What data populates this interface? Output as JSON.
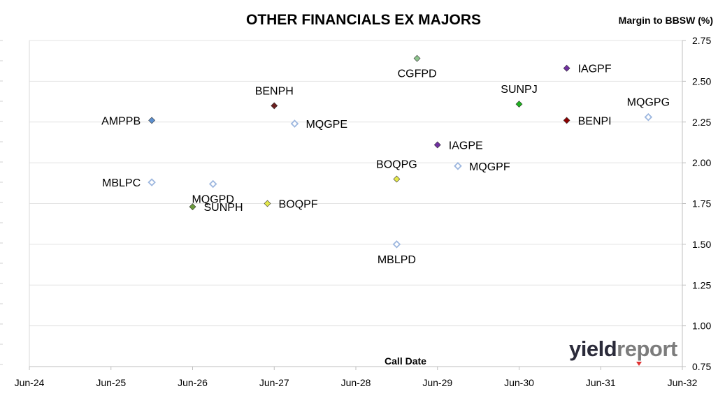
{
  "chart_data": {
    "type": "scatter",
    "title": "OTHER FINANCIALS EX MAJORS",
    "ylabel": "Margin to BBSW (%)",
    "xlabel": "Call Date",
    "x_ticks": [
      "Jun-24",
      "Jun-25",
      "Jun-26",
      "Jun-27",
      "Jun-28",
      "Jun-29",
      "Jun-30",
      "Jun-31",
      "Jun-32"
    ],
    "y_ticks": [
      "0.75",
      "1.00",
      "1.25",
      "1.50",
      "1.75",
      "2.00",
      "2.25",
      "2.50",
      "2.75"
    ],
    "ylim": [
      0.75,
      2.75
    ],
    "xlim": [
      "2024-06",
      "2032-06"
    ],
    "grid": "horizontal",
    "points": [
      {
        "label": "AMPPB",
        "x": "2025-12",
        "y": 2.26,
        "color": "#5b8fcf",
        "filled": true,
        "label_pos": "left"
      },
      {
        "label": "MBLPC",
        "x": "2025-12",
        "y": 1.88,
        "color": "#9db7df",
        "filled": false,
        "label_pos": "left"
      },
      {
        "label": "MQGPD",
        "x": "2026-09",
        "y": 1.87,
        "color": "#9db7df",
        "filled": false,
        "label_pos": "below"
      },
      {
        "label": "SUNPH",
        "x": "2026-06",
        "y": 1.73,
        "color": "#6b9a3c",
        "filled": true,
        "label_pos": "right"
      },
      {
        "label": "BOQPF",
        "x": "2027-05",
        "y": 1.75,
        "color": "#e4e84a",
        "filled": true,
        "label_pos": "right"
      },
      {
        "label": "BENPH",
        "x": "2027-06",
        "y": 2.35,
        "color": "#6b1f1f",
        "filled": true,
        "label_pos": "above"
      },
      {
        "label": "MQGPE",
        "x": "2027-09",
        "y": 2.24,
        "color": "#9db7df",
        "filled": false,
        "label_pos": "right"
      },
      {
        "label": "BOQPG",
        "x": "2028-12",
        "y": 1.9,
        "color": "#e4e84a",
        "filled": true,
        "label_pos": "above"
      },
      {
        "label": "MBLPD",
        "x": "2028-12",
        "y": 1.5,
        "color": "#9db7df",
        "filled": false,
        "label_pos": "below"
      },
      {
        "label": "CGFPD",
        "x": "2029-03",
        "y": 2.64,
        "color": "#8cc38c",
        "filled": true,
        "label_pos": "below"
      },
      {
        "label": "IAGPE",
        "x": "2029-06",
        "y": 2.11,
        "color": "#7030a0",
        "filled": true,
        "label_pos": "right"
      },
      {
        "label": "MQGPF",
        "x": "2029-09",
        "y": 1.98,
        "color": "#9db7df",
        "filled": false,
        "label_pos": "right"
      },
      {
        "label": "SUNPJ",
        "x": "2030-06",
        "y": 2.36,
        "color": "#1fb01f",
        "filled": true,
        "label_pos": "above"
      },
      {
        "label": "IAGPF",
        "x": "2031-01",
        "y": 2.58,
        "color": "#7030a0",
        "filled": true,
        "label_pos": "right"
      },
      {
        "label": "BENPI",
        "x": "2031-01",
        "y": 2.26,
        "color": "#8b0000",
        "filled": true,
        "label_pos": "right"
      },
      {
        "label": "MQGPG",
        "x": "2032-01",
        "y": 2.28,
        "color": "#9db7df",
        "filled": false,
        "label_pos": "above"
      }
    ]
  },
  "logo": {
    "part1": "yield",
    "part2": "report",
    "color1": "#2b2b3a",
    "color2": "#7c7c7c",
    "accent": "#e03030"
  }
}
